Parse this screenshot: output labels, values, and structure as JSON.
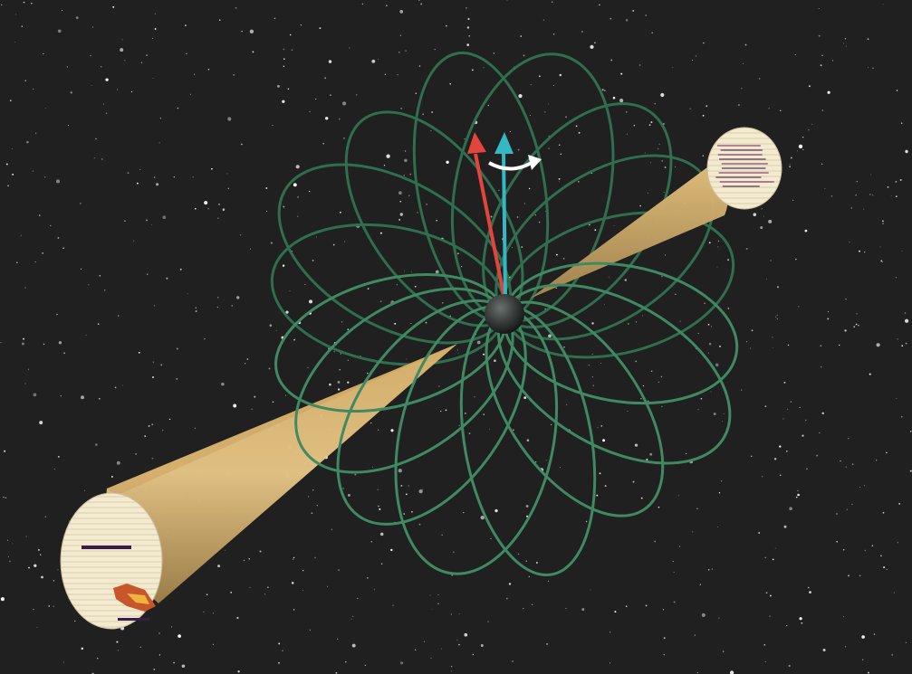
{
  "scene": {
    "background_color": "#202020",
    "star_color": "#ffffff",
    "field_line_color": "#2f6e4e",
    "field_line_highlight": "#3f8a62",
    "beam_color_light": "#e6c07a",
    "beam_color_dark": "#a7884f",
    "pulsar_color": "#3a3f3d",
    "spin_axis_color": "#36b7c4",
    "magnetic_axis_color": "#e3443b",
    "rotation_arrow_color": "#ffffff",
    "disc_color": "#f3e8c8",
    "pulse_colors": [
      "#f0b33e",
      "#c7562a",
      "#7a2c6a",
      "#3a1d4e"
    ]
  },
  "icons": {
    "pulsar": "neutron-star",
    "spin_axis": "cyan-arrow",
    "magnetic_axis": "red-arrow",
    "rotation": "curved-arrow"
  }
}
